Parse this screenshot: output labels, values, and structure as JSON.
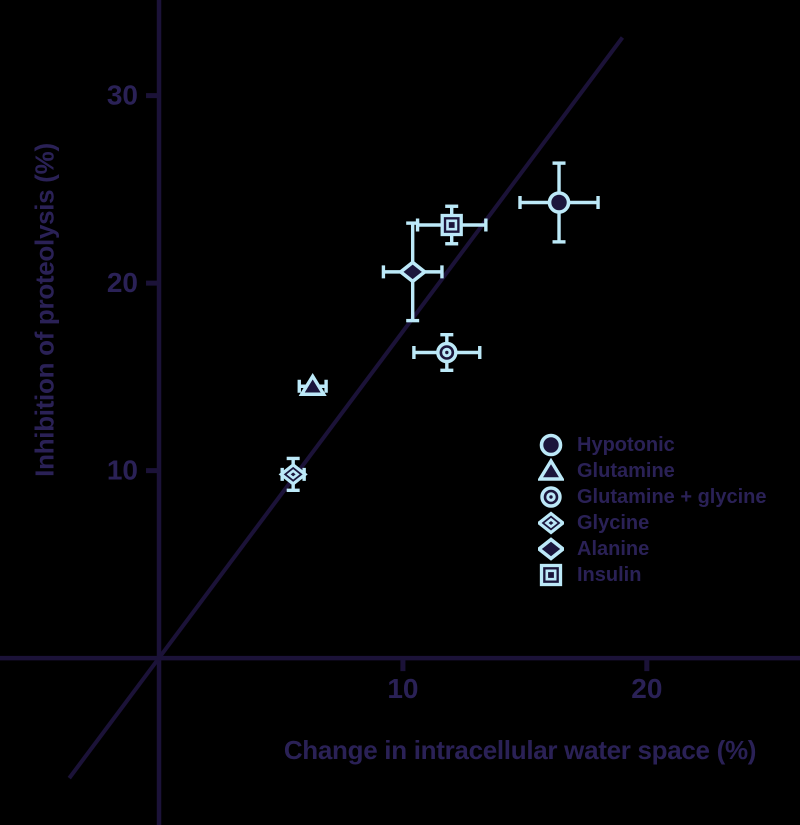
{
  "chart_data": {
    "type": "scatter",
    "title": "",
    "xlabel": "Change in intracellular water space (%)",
    "ylabel": "Inhibition of proteolysis (%)",
    "xlim": [
      -6.52,
      26.28
    ],
    "ylim": [
      -8.9,
      35.1
    ],
    "xticks": [
      10,
      20
    ],
    "yticks": [
      10,
      20,
      30
    ],
    "grid": false,
    "legend_position": "inside-right",
    "identity_line": {
      "description": "straight reference line through the origin",
      "points": [
        [
          -3.68,
          -6.4
        ],
        [
          19.0,
          33.1
        ]
      ]
    },
    "series": [
      {
        "name": "Hypotonic",
        "marker": "circle",
        "x": 16.4,
        "y": 24.3,
        "xerr": 1.6,
        "yerr": 2.1
      },
      {
        "name": "Glutamine",
        "marker": "triangle",
        "x": 6.3,
        "y": 14.5,
        "xerr": 0.55,
        "yerr": 0
      },
      {
        "name": "Glutamine + glycine",
        "marker": "circle-dot",
        "x": 11.8,
        "y": 16.3,
        "xerr": 1.35,
        "yerr": 0.95
      },
      {
        "name": "Glycine",
        "marker": "diamond-dot",
        "x": 5.5,
        "y": 9.8,
        "xerr": 0.45,
        "yerr": 0.85
      },
      {
        "name": "Alanine",
        "marker": "diamond",
        "x": 10.4,
        "y": 20.6,
        "xerr": 1.2,
        "yerr": 2.6
      },
      {
        "name": "Insulin",
        "marker": "square-dot",
        "x": 12,
        "y": 23.1,
        "xerr": 1.4,
        "yerr": 1
      }
    ],
    "palette": {
      "background": "#000000",
      "axis": "#1b1238",
      "text": "#2a2156",
      "marker_stroke": "#bce9f8",
      "marker_fill": "#1b163c"
    }
  }
}
